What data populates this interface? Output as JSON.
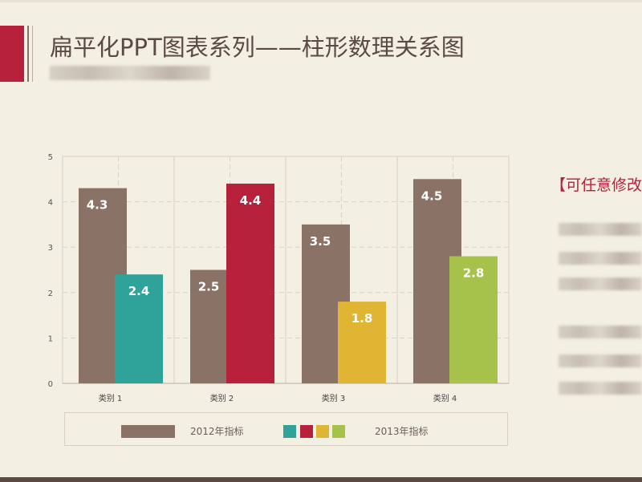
{
  "header": {
    "title": "扁平化PPT图表系列——柱形数理关系图"
  },
  "side_panel": {
    "title": "【可任意修改"
  },
  "colors": {
    "accent": "#b8213b",
    "brown": "#8a7266",
    "teal": "#2fa39a",
    "red": "#b8213b",
    "yellow": "#e0b534",
    "green": "#a6c24a"
  },
  "chart_data": {
    "type": "bar",
    "categories": [
      "类别 1",
      "类别 2",
      "类别 3",
      "类别 4"
    ],
    "series": [
      {
        "name": "2012年指标",
        "values": [
          4.3,
          2.5,
          3.5,
          4.5
        ],
        "colors": [
          "#8a7266",
          "#8a7266",
          "#8a7266",
          "#8a7266"
        ]
      },
      {
        "name": "2013年指标",
        "values": [
          2.4,
          4.4,
          1.8,
          2.8
        ],
        "colors": [
          "#2fa39a",
          "#b8213b",
          "#e0b534",
          "#a6c24a"
        ]
      }
    ],
    "data_labels": [
      [
        "4.3",
        "2.5",
        "3.5",
        "4.5"
      ],
      [
        "2.4",
        "4.4",
        "1.8",
        "2.8"
      ]
    ],
    "yticks": [
      "0",
      "1",
      "2",
      "3",
      "4",
      "5"
    ],
    "ylim": [
      0,
      5
    ],
    "grid": true,
    "legend": {
      "position": "bottom",
      "labels": [
        "2012年指标",
        "2013年指标"
      ]
    }
  }
}
